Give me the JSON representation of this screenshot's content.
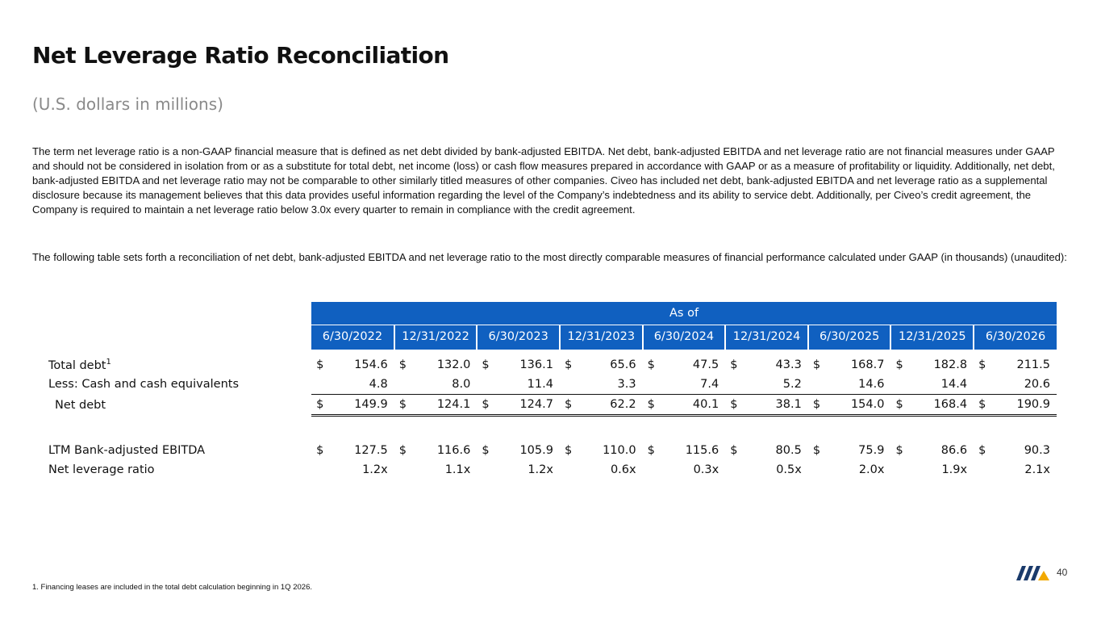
{
  "page": {
    "title": "Net Leverage Ratio Reconciliation",
    "subtitle": "(U.S. dollars in millions)",
    "paragraph1": "The term net leverage ratio is a non-GAAP financial measure that is defined as net debt divided by bank-adjusted EBITDA. Net debt, bank-adjusted EBITDA and net leverage ratio are not financial measures under GAAP and should not be considered in isolation from or as a substitute for total debt, net income (loss) or cash flow measures prepared in accordance with GAAP or as a measure of profitability or liquidity. Additionally, net debt, bank-adjusted EBITDA and net leverage ratio may not be comparable to other similarly titled measures of other companies. Civeo has included net debt, bank-adjusted EBITDA and net leverage ratio as a supplemental disclosure because its management believes that this data provides useful information regarding the level of the Company’s indebtedness and its ability to service debt. Additionally, per Civeo’s credit agreement, the Company is required to maintain a net leverage ratio below 3.0x every quarter to remain in compliance with the credit agreement.",
    "paragraph2": "The following table sets forth a reconciliation of net debt, bank-adjusted EBITDA and net leverage ratio to the most directly comparable measures of financial performance calculated under GAAP (in thousands) (unaudited):",
    "footnote": "1. Financing leases are included in the total debt calculation beginning in 1Q 2026.",
    "page_number": "40"
  },
  "table": {
    "header_group": "As of",
    "dates": [
      "6/30/2022",
      "12/31/2022",
      "6/30/2023",
      "12/31/2023",
      "6/30/2024",
      "12/31/2024",
      "6/30/2025",
      "12/31/2025",
      "6/30/2026"
    ],
    "currency_symbol": "$",
    "rows": [
      {
        "label": "Total debt",
        "footnote_mark": "1",
        "show_currency": true,
        "values": [
          "154.6",
          "132.0",
          "136.1",
          "65.6",
          "47.5",
          "43.3",
          "168.7",
          "182.8",
          "211.5"
        ]
      },
      {
        "label": "Less: Cash and cash equivalents",
        "footnote_mark": "",
        "show_currency": false,
        "values": [
          "4.8",
          "8.0",
          "11.4",
          "3.3",
          "7.4",
          "5.2",
          "14.6",
          "14.4",
          "20.6"
        ]
      },
      {
        "label": "Net debt",
        "footnote_mark": "",
        "show_currency": true,
        "values": [
          "149.9",
          "124.1",
          "124.7",
          "62.2",
          "40.1",
          "38.1",
          "154.0",
          "168.4",
          "190.9"
        ]
      },
      {
        "label": "LTM Bank-adjusted EBITDA",
        "footnote_mark": "",
        "show_currency": true,
        "values": [
          "127.5",
          "116.6",
          "105.9",
          "110.0",
          "115.6",
          "80.5",
          "75.9",
          "86.6",
          "90.3"
        ]
      },
      {
        "label": "Net leverage ratio",
        "footnote_mark": "",
        "show_currency": false,
        "values": [
          "1.2x",
          "1.1x",
          "1.2x",
          "0.6x",
          "0.3x",
          "0.5x",
          "2.0x",
          "1.9x",
          "2.1x"
        ]
      }
    ]
  },
  "colors": {
    "header_blue": "#1060c0",
    "subtitle_gray": "#8a8a8a",
    "logo_navy": "#1a3a6b",
    "logo_gold": "#f2a900"
  },
  "icons": {
    "logo": "company-logo-icon"
  }
}
